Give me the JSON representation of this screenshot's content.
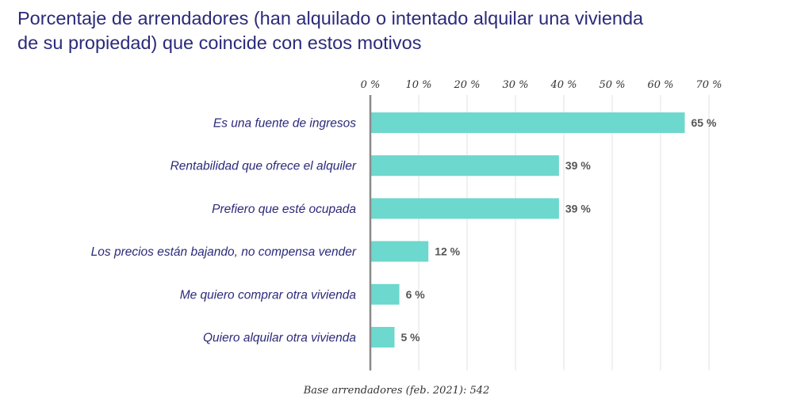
{
  "title_lines": [
    "Porcentaje de arrendadores (han alquilado o intentado alquilar una vivienda",
    "de su propiedad) que coincide con estos motivos"
  ],
  "footnote": "Base arrendadores (feb. 2021): 542",
  "colors": {
    "bar": "#6dd8cd",
    "title": "#2b2a7a",
    "grid": "#e2e2e2",
    "axis": "#8a8a8a",
    "value_text": "#555555"
  },
  "chart_data": {
    "type": "bar",
    "orientation": "horizontal",
    "title": "Porcentaje de arrendadores (han alquilado o intentado alquilar una vivienda de su propiedad) que coincide con estos motivos",
    "categories": [
      "Es una fuente de ingresos",
      "Rentabilidad que ofrece el alquiler",
      "Prefiero que esté ocupada",
      "Los precios están bajando, no compensa vender",
      "Me quiero comprar otra vivienda",
      "Quiero alquilar otra vivienda"
    ],
    "values": [
      65,
      39,
      39,
      12,
      6,
      5
    ],
    "value_labels": [
      "65 %",
      "39 %",
      "39 %",
      "12 %",
      "6 %",
      "5 %"
    ],
    "x_ticks": [
      0,
      10,
      20,
      30,
      40,
      50,
      60,
      70
    ],
    "x_tick_labels": [
      "0 %",
      "10 %",
      "20 %",
      "30 %",
      "40 %",
      "50 %",
      "60 %",
      "70 %"
    ],
    "xlim": [
      0,
      70
    ],
    "xlabel": "",
    "ylabel": "",
    "axis_position": "top",
    "grid": true,
    "legend": "none"
  }
}
